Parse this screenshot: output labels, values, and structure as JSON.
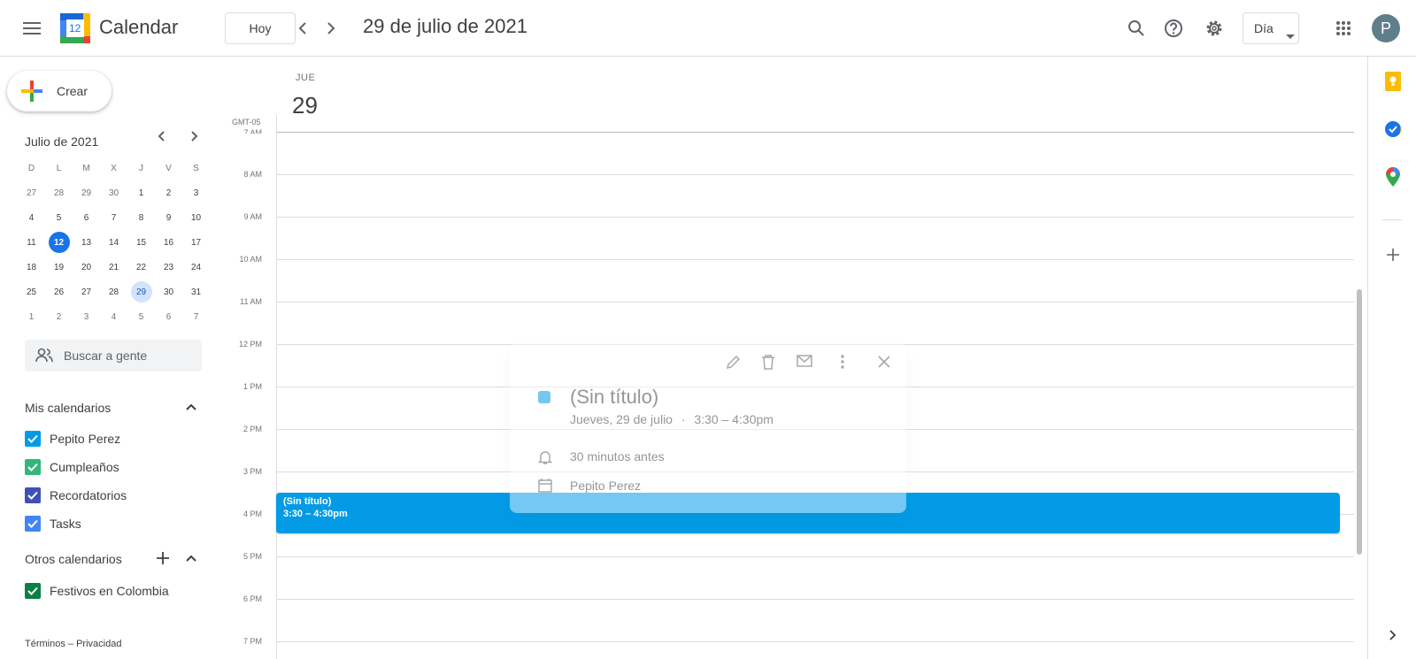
{
  "header": {
    "app_title": "Calendar",
    "logo_number": "12",
    "today_button": "Hoy",
    "date_title": "29 de julio de 2021",
    "view_select": "Día",
    "avatar_letter": "P"
  },
  "sidebar": {
    "create_label": "Crear",
    "mini_calendar": {
      "title": "Julio de 2021",
      "weekdays": [
        "D",
        "L",
        "M",
        "X",
        "J",
        "V",
        "S"
      ],
      "weeks": [
        [
          "27",
          "28",
          "29",
          "30",
          "1",
          "2",
          "3"
        ],
        [
          "4",
          "5",
          "6",
          "7",
          "8",
          "9",
          "10"
        ],
        [
          "11",
          "12",
          "13",
          "14",
          "15",
          "16",
          "17"
        ],
        [
          "18",
          "19",
          "20",
          "21",
          "22",
          "23",
          "24"
        ],
        [
          "25",
          "26",
          "27",
          "28",
          "29",
          "30",
          "31"
        ],
        [
          "1",
          "2",
          "3",
          "4",
          "5",
          "6",
          "7"
        ]
      ]
    },
    "people_search_placeholder": "Buscar a gente",
    "my_calendars_title": "Mis calendarios",
    "my_calendars": [
      {
        "label": "Pepito Perez",
        "color": "#039be5"
      },
      {
        "label": "Cumpleaños",
        "color": "#33b679"
      },
      {
        "label": "Recordatorios",
        "color": "#3f51b5"
      },
      {
        "label": "Tasks",
        "color": "#4285f4"
      }
    ],
    "other_calendars_title": "Otros calendarios",
    "other_calendars": [
      {
        "label": "Festivos en Colombia",
        "color": "#0b8043"
      }
    ],
    "footer": {
      "terms": "Términos",
      "separator": "–",
      "privacy": "Privacidad"
    }
  },
  "day_view": {
    "day_name": "JUE",
    "day_number": "29",
    "timezone": "GMT-05",
    "hours": [
      "7 AM",
      "8 AM",
      "9 AM",
      "10 AM",
      "11 AM",
      "12 PM",
      "1 PM",
      "2 PM",
      "3 PM",
      "4 PM",
      "5 PM",
      "6 PM",
      "7 PM"
    ]
  },
  "event": {
    "title": "(Sin título)",
    "time": "3:30 – 4:30pm",
    "color": "#039be5"
  },
  "popup": {
    "title": "(Sin título)",
    "date_line": "Jueves, 29 de julio",
    "dot": "·",
    "time": "3:30 – 4:30pm",
    "reminder": "30 minutos antes",
    "calendar": "Pepito Perez"
  }
}
